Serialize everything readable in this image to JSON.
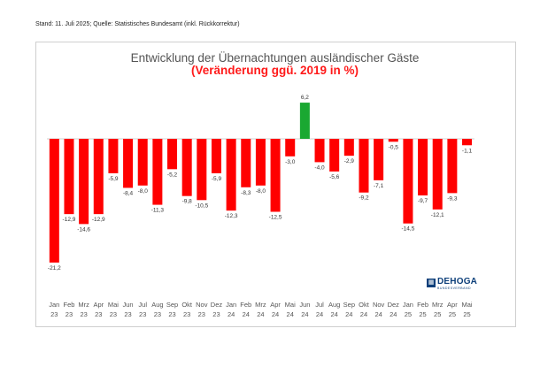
{
  "source_note": "Stand: 11. Juli 2025; Quelle: Statistisches Bundesamt (inkl. Rückkorrektur)",
  "logo": {
    "name": "DEHOGA",
    "sub": "BUNDESVERBAND",
    "icon": "dehoga-logo-icon"
  },
  "colors": {
    "negative": "#ff0000",
    "positive": "#1aa832"
  },
  "chart_data": {
    "type": "bar",
    "title": "Entwicklung der Übernachtungen ausländischer Gäste",
    "subtitle": "(Veränderung ggü. 2019 in %)",
    "categories": [
      [
        "Jan",
        "23"
      ],
      [
        "Feb",
        "23"
      ],
      [
        "Mrz",
        "23"
      ],
      [
        "Apr",
        "23"
      ],
      [
        "Mai",
        "23"
      ],
      [
        "Jun",
        "23"
      ],
      [
        "Jul",
        "23"
      ],
      [
        "Aug",
        "23"
      ],
      [
        "Sep",
        "23"
      ],
      [
        "Okt",
        "23"
      ],
      [
        "Nov",
        "23"
      ],
      [
        "Dez",
        "23"
      ],
      [
        "Jan",
        "24"
      ],
      [
        "Feb",
        "24"
      ],
      [
        "Mrz",
        "24"
      ],
      [
        "Apr",
        "24"
      ],
      [
        "Mai",
        "24"
      ],
      [
        "Jun",
        "24"
      ],
      [
        "Jul",
        "24"
      ],
      [
        "Aug",
        "24"
      ],
      [
        "Sep",
        "24"
      ],
      [
        "Okt",
        "24"
      ],
      [
        "Nov",
        "24"
      ],
      [
        "Dez",
        "24"
      ],
      [
        "Jan",
        "25"
      ],
      [
        "Feb",
        "25"
      ],
      [
        "Mrz",
        "25"
      ],
      [
        "Apr",
        "25"
      ],
      [
        "Mai",
        "25"
      ]
    ],
    "values": [
      -21.2,
      -12.9,
      -14.6,
      -12.9,
      -5.9,
      -8.4,
      -8.0,
      -11.3,
      -5.2,
      -9.8,
      -10.5,
      -5.9,
      -12.3,
      -8.3,
      -8.0,
      -12.5,
      -3.0,
      6.2,
      -4.0,
      -5.6,
      -2.9,
      -9.2,
      -7.1,
      -0.5,
      -14.5,
      -9.7,
      -12.1,
      -9.3,
      -1.1
    ],
    "labels": [
      "-21,2",
      "-12,9",
      "-14,6",
      "-12,9",
      "-5,9",
      "-8,4",
      "-8,0",
      "-11,3",
      "-5,2",
      "-9,8",
      "-10,5",
      "-5,9",
      "-12,3",
      "-8,3",
      "-8,0",
      "-12,5",
      "-3,0",
      "6,2",
      "-4,0",
      "-5,6",
      "-2,9",
      "-9,2",
      "-7,1",
      "-0,5",
      "-14,5",
      "-9,7",
      "-12,1",
      "-9,3",
      "-1,1"
    ],
    "ylim": [
      -22,
      7
    ],
    "grid": false,
    "legend": "none"
  }
}
